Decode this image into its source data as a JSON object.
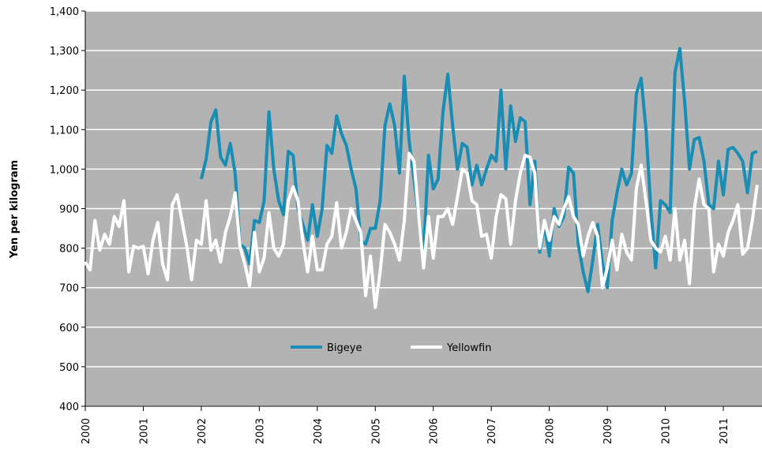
{
  "chart_data": {
    "type": "line",
    "y_label": "Yen per kilogram",
    "categories": [
      "2000",
      null,
      null,
      null,
      null,
      null,
      null,
      null,
      null,
      null,
      null,
      null,
      "2001",
      null,
      null,
      null,
      null,
      null,
      null,
      null,
      null,
      null,
      null,
      null,
      "2002",
      null,
      null,
      null,
      null,
      null,
      null,
      null,
      null,
      null,
      null,
      null,
      "2003",
      null,
      null,
      null,
      null,
      null,
      null,
      null,
      null,
      null,
      null,
      null,
      "2004",
      null,
      null,
      null,
      null,
      null,
      null,
      null,
      null,
      null,
      null,
      null,
      "2005",
      null,
      null,
      null,
      null,
      null,
      null,
      null,
      null,
      null,
      null,
      null,
      "2006",
      null,
      null,
      null,
      null,
      null,
      null,
      null,
      null,
      null,
      null,
      null,
      "2007",
      null,
      null,
      null,
      null,
      null,
      null,
      null,
      null,
      null,
      null,
      null,
      "2008",
      null,
      null,
      null,
      null,
      null,
      null,
      null,
      null,
      null,
      null,
      null,
      "2009",
      null,
      null,
      null,
      null,
      null,
      null,
      null,
      null,
      null,
      null,
      null,
      "2010",
      null,
      null,
      null,
      null,
      null,
      null,
      null,
      null,
      null,
      null,
      null,
      "2011",
      null,
      null,
      null,
      null,
      null,
      null,
      null
    ],
    "series": [
      {
        "name": "Bigeye",
        "color": "#1a8db4",
        "values": [
          null,
          null,
          null,
          null,
          null,
          null,
          null,
          null,
          null,
          null,
          null,
          null,
          null,
          null,
          null,
          null,
          null,
          null,
          null,
          null,
          null,
          null,
          null,
          null,
          975,
          1025,
          1120,
          1150,
          1030,
          1010,
          1065,
          990,
          810,
          800,
          760,
          870,
          865,
          920,
          1145,
          1000,
          920,
          885,
          1045,
          1035,
          900,
          860,
          820,
          910,
          830,
          900,
          1060,
          1040,
          1135,
          1090,
          1060,
          1000,
          950,
          820,
          810,
          850,
          850,
          920,
          1110,
          1165,
          1110,
          990,
          1235,
          1070,
          975,
          880,
          790,
          1035,
          950,
          975,
          1145,
          1240,
          1110,
          1000,
          1065,
          1055,
          960,
          1010,
          960,
          1000,
          1035,
          1020,
          1200,
          1000,
          1160,
          1070,
          1130,
          1120,
          910,
          1020,
          790,
          860,
          780,
          900,
          855,
          880,
          1005,
          990,
          810,
          740,
          690,
          770,
          860,
          760,
          700,
          870,
          940,
          1000,
          960,
          990,
          1190,
          1230,
          1100,
          900,
          750,
          920,
          910,
          890,
          1245,
          1305,
          1170,
          1000,
          1075,
          1080,
          1020,
          910,
          900,
          1020,
          935,
          1050,
          1055,
          1040,
          1020,
          940,
          1040,
          1045
        ]
      },
      {
        "name": "Yellowfin",
        "color": "#ffffff",
        "values": [
          765,
          745,
          870,
          795,
          835,
          810,
          880,
          855,
          920,
          740,
          805,
          800,
          805,
          735,
          820,
          865,
          760,
          720,
          910,
          935,
          870,
          805,
          720,
          820,
          810,
          920,
          795,
          820,
          765,
          840,
          880,
          940,
          805,
          760,
          705,
          840,
          740,
          775,
          890,
          800,
          780,
          810,
          920,
          955,
          920,
          820,
          740,
          830,
          745,
          745,
          810,
          830,
          915,
          800,
          840,
          900,
          870,
          840,
          680,
          780,
          650,
          740,
          860,
          840,
          810,
          770,
          870,
          1040,
          1020,
          880,
          750,
          880,
          775,
          880,
          880,
          900,
          860,
          930,
          1000,
          990,
          920,
          910,
          830,
          835,
          775,
          880,
          935,
          925,
          810,
          920,
          990,
          1035,
          1030,
          990,
          800,
          870,
          820,
          880,
          860,
          900,
          930,
          880,
          860,
          780,
          830,
          865,
          830,
          700,
          750,
          820,
          745,
          835,
          790,
          770,
          950,
          1010,
          920,
          820,
          800,
          790,
          830,
          770,
          900,
          770,
          820,
          710,
          900,
          975,
          910,
          900,
          740,
          810,
          780,
          840,
          870,
          910,
          785,
          800,
          870,
          960
        ]
      }
    ],
    "ylim": [
      400,
      1400
    ],
    "yticks": [
      400,
      500,
      600,
      700,
      800,
      900,
      {
        "value": 1000,
        "label": "1,000"
      },
      {
        "value": 1100,
        "label": "1,100"
      },
      {
        "value": 1200,
        "label": "1,200"
      },
      {
        "value": 1300,
        "label": "1,300"
      },
      {
        "value": 1400,
        "label": "1,400"
      }
    ],
    "grid": true,
    "plot_background": "#b3b3b3",
    "legend": "bottom"
  }
}
